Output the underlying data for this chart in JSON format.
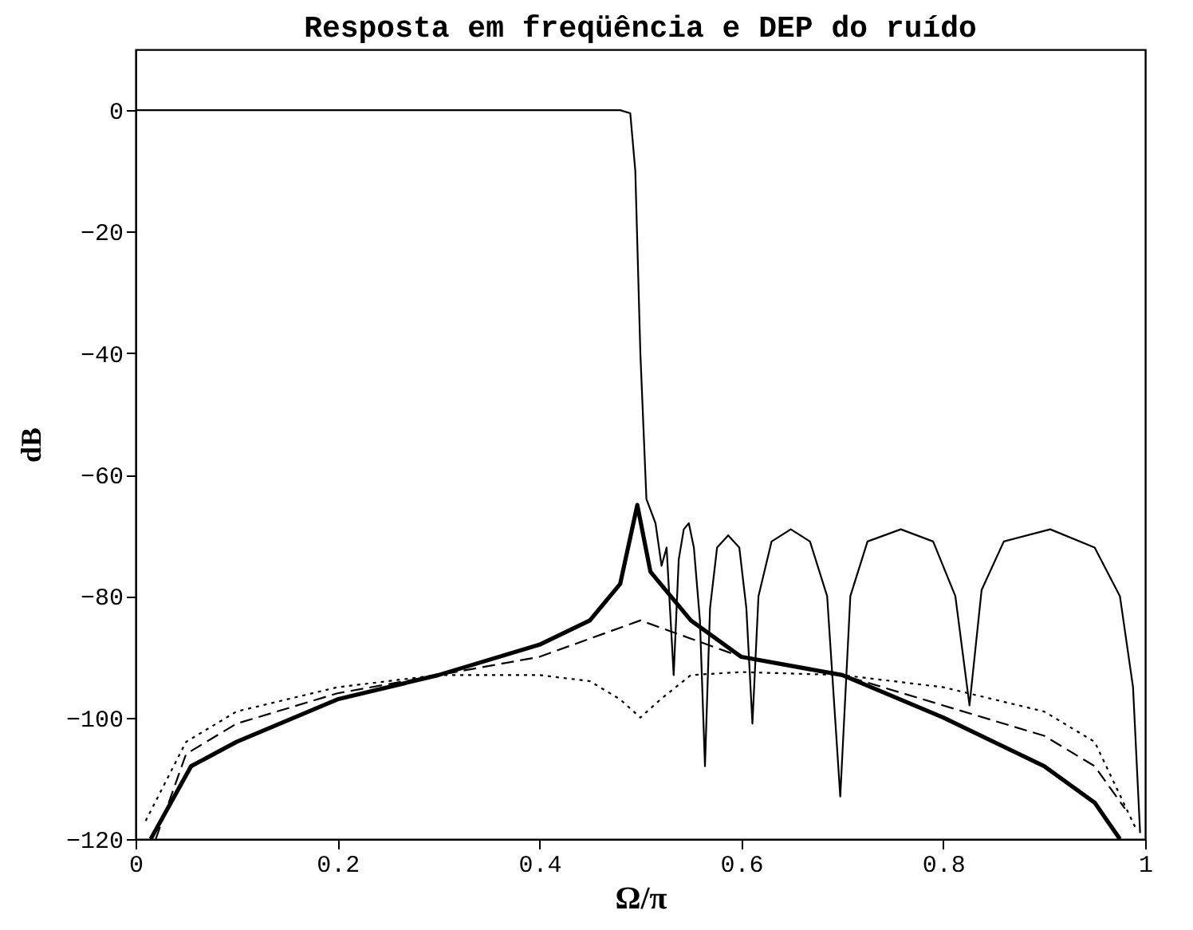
{
  "chart_data": {
    "type": "line",
    "title": "Resposta em freqüência e DEP do ruído",
    "xlabel": "Ω/π",
    "ylabel": "dB",
    "xlim": [
      0,
      1
    ],
    "ylim": [
      -120,
      10
    ],
    "xticks": [
      0,
      0.2,
      0.4,
      0.6,
      0.8,
      1
    ],
    "yticks": [
      -120,
      -100,
      -80,
      -60,
      -40,
      -20,
      0
    ],
    "grid": false,
    "marker": "none",
    "series": [
      {
        "color": "#000000",
        "line_style": "solid",
        "x": [
          0,
          0.1,
          0.2,
          0.3,
          0.4,
          0.48,
          0.49,
          0.495,
          0.5,
          0.506,
          0.515,
          0.521,
          0.526,
          0.533,
          0.538,
          0.543,
          0.548,
          0.553,
          0.559,
          0.564,
          0.569,
          0.576,
          0.587,
          0.598,
          0.605,
          0.611,
          0.617,
          0.63,
          0.649,
          0.668,
          0.685,
          0.698,
          0.708,
          0.725,
          0.758,
          0.79,
          0.812,
          0.826,
          0.838,
          0.86,
          0.906,
          0.95,
          0.975,
          0.988,
          0.995
        ],
        "values": [
          0,
          0,
          0,
          0,
          0,
          0,
          -0.5,
          -10,
          -40,
          -64,
          -68,
          -75,
          -72,
          -93,
          -74,
          -69,
          -68,
          -72,
          -84,
          -108,
          -82,
          -72,
          -70,
          -72,
          -82,
          -101,
          -80,
          -71,
          -69,
          -71,
          -80,
          -113,
          -80,
          -71,
          -69,
          -71,
          -80,
          -98,
          -79,
          -71,
          -69,
          -72,
          -80,
          -95,
          -119
        ]
      },
      {
        "color": "#000000",
        "line_style": "solid",
        "x": [
          0.015,
          0.055,
          0.1,
          0.2,
          0.3,
          0.4,
          0.45,
          0.48,
          0.497,
          0.51,
          0.55,
          0.6,
          0.7,
          0.8,
          0.9,
          0.95,
          0.975
        ],
        "values": [
          -120,
          -108,
          -104,
          -97,
          -93,
          -88,
          -84,
          -78,
          -65,
          -76,
          -84,
          -90,
          -93,
          -100,
          -108,
          -114,
          -120
        ]
      },
      {
        "color": "#000000",
        "line_style": "dashed",
        "x": [
          0.02,
          0.05,
          0.1,
          0.2,
          0.3,
          0.4,
          0.45,
          0.5,
          0.55,
          0.6,
          0.7,
          0.8,
          0.9,
          0.95,
          0.98
        ],
        "values": [
          -120,
          -106,
          -101,
          -96,
          -93,
          -90,
          -87,
          -84,
          -87,
          -90,
          -93,
          -98,
          -103,
          -108,
          -115
        ]
      },
      {
        "color": "#000000",
        "line_style": "dotted",
        "x": [
          0.01,
          0.05,
          0.1,
          0.2,
          0.3,
          0.4,
          0.45,
          0.48,
          0.5,
          0.52,
          0.55,
          0.6,
          0.7,
          0.8,
          0.9,
          0.95,
          0.99
        ],
        "values": [
          -117,
          -104,
          -99,
          -95,
          -93,
          -93,
          -94,
          -97,
          -100,
          -97,
          -93,
          -92.5,
          -93,
          -95,
          -99,
          -104,
          -118
        ]
      }
    ]
  }
}
